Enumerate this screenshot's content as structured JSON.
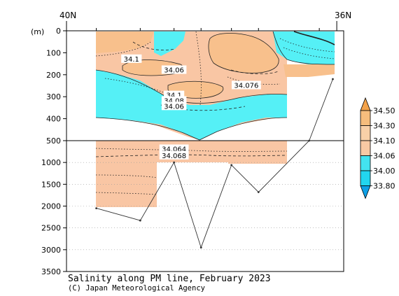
{
  "chart_data": {
    "type": "contour-section",
    "title": "Salinity along PM line, February 2023",
    "credit": "(C) Japan Meteorological Agency",
    "lat_left": "40N",
    "lat_right": "36N",
    "ylabel": "(m)",
    "y_upper_ticks": [
      0,
      100,
      200,
      300,
      400,
      500
    ],
    "y_lower_ticks": [
      1000,
      1500,
      2000,
      2500,
      3000,
      3500
    ],
    "ylim": [
      0,
      3500
    ],
    "depth_break": 500,
    "contour_labels": [
      {
        "text": "34.1",
        "lat": 39.08,
        "depth": 130
      },
      {
        "text": "34.06",
        "lat": 38.45,
        "depth": 180
      },
      {
        "text": "34.076",
        "lat": 37.38,
        "depth": 250
      },
      {
        "text": "34.1",
        "lat": 38.45,
        "depth": 295
      },
      {
        "text": "34.08",
        "lat": 38.45,
        "depth": 320
      },
      {
        "text": "34.06",
        "lat": 38.45,
        "depth": 345
      },
      {
        "text": "34.064",
        "lat": 38.45,
        "depth": 700
      },
      {
        "text": "34.068",
        "lat": 38.45,
        "depth": 850
      }
    ],
    "stations_lat": [
      39.6,
      38.95,
      38.45,
      38.05,
      37.6,
      37.2,
      36.3
    ],
    "bottom_depth": [
      2050,
      2330,
      1000,
      2950,
      1060,
      1680,
      500,
      220
    ],
    "bottom_lat": [
      39.6,
      38.95,
      38.45,
      38.05,
      37.6,
      37.2,
      36.45,
      36.1
    ],
    "colorbar": {
      "labels": [
        "34.50",
        "34.30",
        "34.10",
        "34.06",
        "34.00",
        "33.80"
      ],
      "colors": [
        "#f3a24a",
        "#f6bd7d",
        "#f8d0a8",
        "#f9c9a4",
        "#43e3f0",
        "#22d6ef",
        "#0ea0e6"
      ]
    },
    "colors": {
      "high": "#f8c08c",
      "mid": "#f9c6a4",
      "low": "#55f0f6",
      "frame": "#000000"
    }
  }
}
